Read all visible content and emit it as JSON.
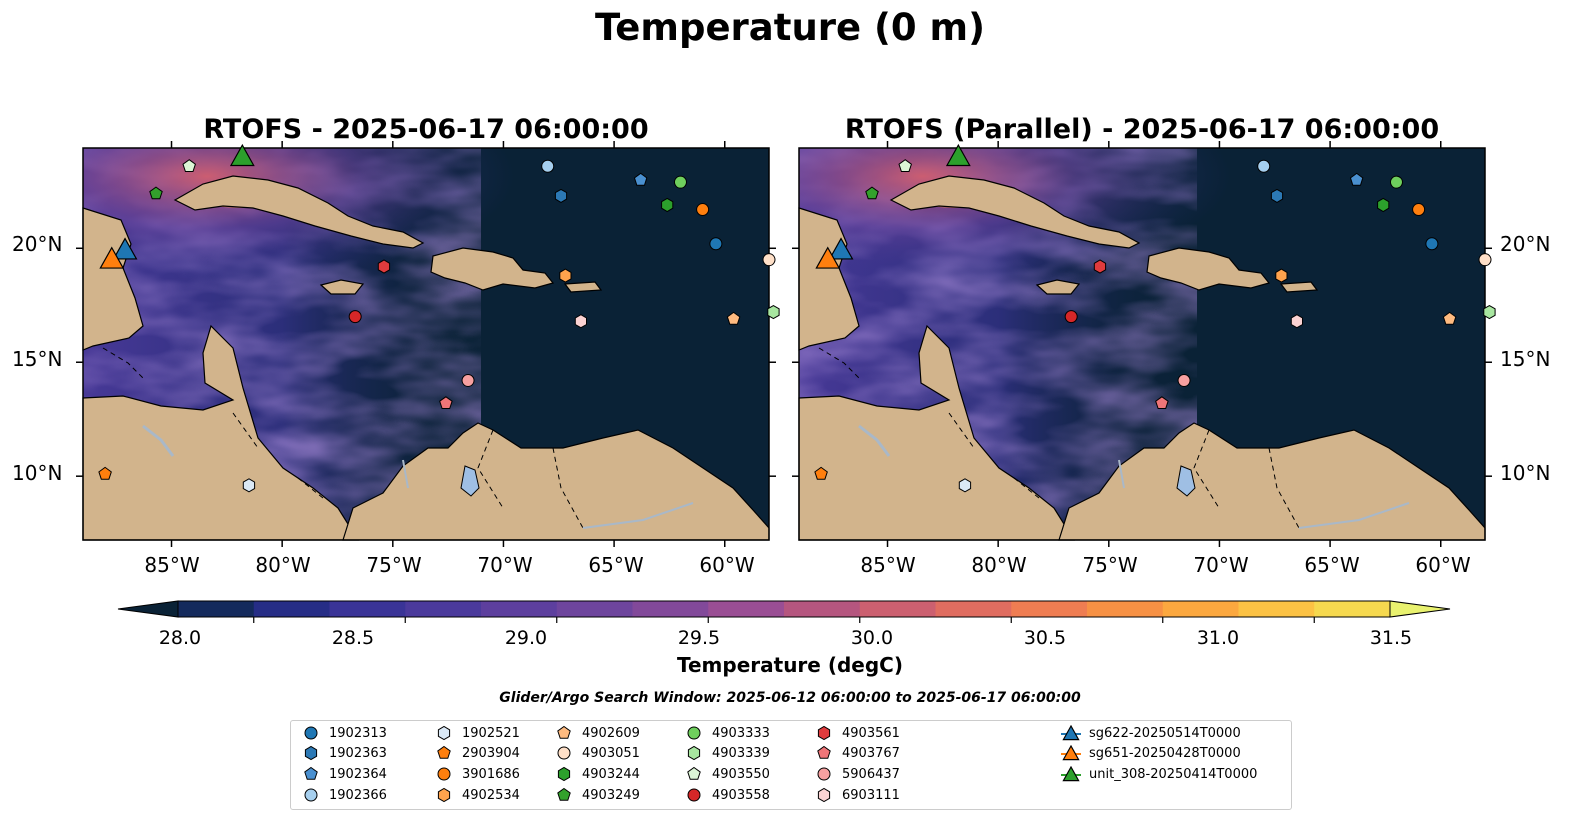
{
  "title": "Temperature (0 m)",
  "maps": [
    {
      "title": "RTOFS - 2025-06-17 06:00:00"
    },
    {
      "title": "RTOFS (Parallel) - 2025-06-17 06:00:00"
    }
  ],
  "axes": {
    "lon_ticks": [
      "85°W",
      "80°W",
      "75°W",
      "70°W",
      "65°W",
      "60°W"
    ],
    "lat_ticks": [
      "20°N",
      "15°N",
      "10°N"
    ],
    "lon_range": [
      -89,
      -58
    ],
    "lat_range": [
      7.2,
      24.4
    ]
  },
  "colorbar": {
    "label": "Temperature (degC)",
    "ticks": [
      "28.0",
      "28.5",
      "29.0",
      "29.5",
      "30.0",
      "30.5",
      "31.0",
      "31.5"
    ],
    "range": [
      27.75,
      31.75
    ],
    "colors": [
      "#0a2236",
      "#142a5c",
      "#262d86",
      "#3a3497",
      "#4b3a9c",
      "#5d3f9e",
      "#6e459d",
      "#82499a",
      "#9a4e94",
      "#b5567f",
      "#cc6070",
      "#e06d60",
      "#ef7d52",
      "#f79144",
      "#fca83f",
      "#fcc244",
      "#f6d94f",
      "#e9f26f"
    ]
  },
  "search_window": "Glider/Argo Search Window: 2025-06-12 06:00:00 to 2025-06-17 06:00:00",
  "legend": {
    "argo": [
      {
        "label": "1902313",
        "marker": "circle",
        "color": "#1f77b4",
        "lon": -60.4,
        "lat": 20.2
      },
      {
        "label": "1902363",
        "marker": "hexagon",
        "color": "#2c79b5",
        "lon": -67.4,
        "lat": 22.3
      },
      {
        "label": "1902364",
        "marker": "pentagon",
        "color": "#4a90d0",
        "lon": -63.8,
        "lat": 23.0
      },
      {
        "label": "1902366",
        "marker": "circle",
        "color": "#a6cfee",
        "lon": -68.0,
        "lat": 23.6
      },
      {
        "label": "1902521",
        "marker": "hexagon",
        "color": "#dbe9f6",
        "lon": -81.5,
        "lat": 9.6
      },
      {
        "label": "2903904",
        "marker": "pentagon",
        "color": "#ff7f0e",
        "lon": -88.0,
        "lat": 10.1
      },
      {
        "label": "3901686",
        "marker": "circle",
        "color": "#ff7f0e",
        "lon": -61.0,
        "lat": 21.7
      },
      {
        "label": "4902534",
        "marker": "hexagon",
        "color": "#ffa34d",
        "lon": -67.2,
        "lat": 18.8
      },
      {
        "label": "4902609",
        "marker": "pentagon",
        "color": "#ffbb80",
        "lon": -59.6,
        "lat": 16.9
      },
      {
        "label": "4903051",
        "marker": "circle",
        "color": "#ffe0c8",
        "lon": -58.0,
        "lat": 19.5
      },
      {
        "label": "4903244",
        "marker": "hexagon",
        "color": "#2ca02c",
        "lon": -62.6,
        "lat": 21.9
      },
      {
        "label": "4903249",
        "marker": "pentagon",
        "color": "#33a12c",
        "lon": -85.7,
        "lat": 22.4
      },
      {
        "label": "4903333",
        "marker": "circle",
        "color": "#6fcf5d",
        "lon": -62.0,
        "lat": 22.9
      },
      {
        "label": "4903339",
        "marker": "hexagon",
        "color": "#a8e6a0",
        "lon": -57.8,
        "lat": 17.2
      },
      {
        "label": "4903550",
        "marker": "pentagon",
        "color": "#dcf5d6",
        "lon": -84.2,
        "lat": 23.6
      },
      {
        "label": "4903558",
        "marker": "circle",
        "color": "#d62728",
        "lon": -76.7,
        "lat": 17.0
      },
      {
        "label": "4903561",
        "marker": "hexagon",
        "color": "#e03b3d",
        "lon": -75.4,
        "lat": 19.2
      },
      {
        "label": "4903767",
        "marker": "pentagon",
        "color": "#f07578",
        "lon": -72.6,
        "lat": 13.2
      },
      {
        "label": "5906437",
        "marker": "circle",
        "color": "#f7a0a0",
        "lon": -71.6,
        "lat": 14.2
      },
      {
        "label": "6903111",
        "marker": "hexagon",
        "color": "#fbd3d3",
        "lon": -66.5,
        "lat": 16.8
      }
    ],
    "gliders": [
      {
        "label": "sg622-20250514T0000",
        "color": "#1f77b4",
        "lon": -87.1,
        "lat": 19.9
      },
      {
        "label": "sg651-20250428T0000",
        "color": "#ff7f0e",
        "lon": -87.7,
        "lat": 19.5
      },
      {
        "label": "unit_308-20250414T0000",
        "color": "#2ca02c",
        "lon": -81.8,
        "lat": 24.0
      }
    ]
  }
}
